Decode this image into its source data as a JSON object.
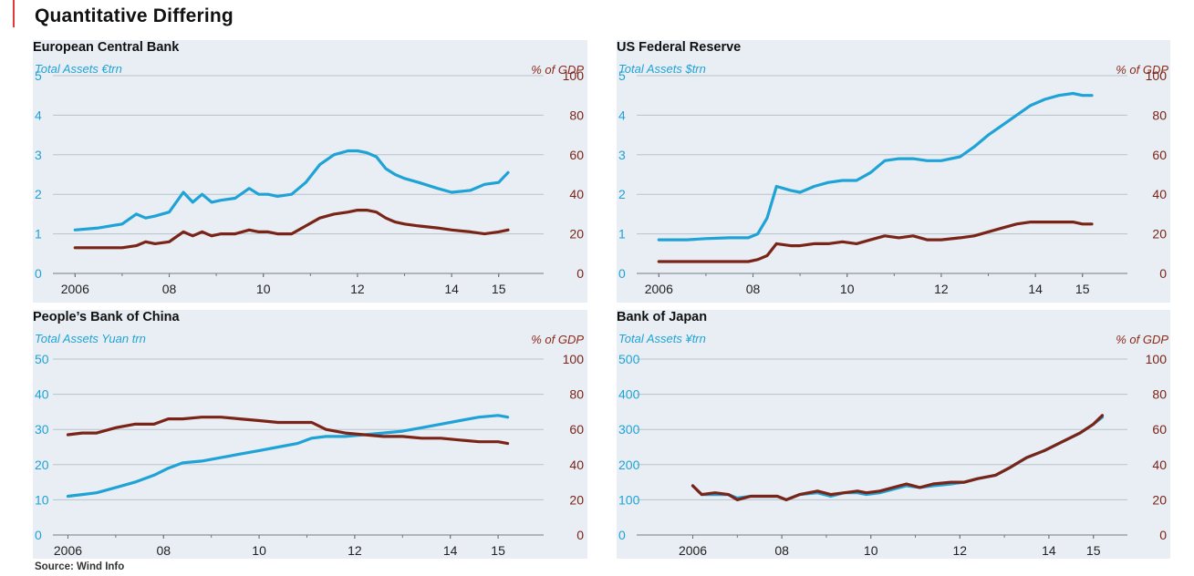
{
  "title": "Quantitative Differing",
  "source": "Source: Wind Info",
  "colors": {
    "assets": "#1fa3d6",
    "gdp": "#7a2418",
    "grid": "#b9c3cc",
    "background": "#e8eef4"
  },
  "chart_data": [
    {
      "type": "line",
      "title": "European Central Bank",
      "ylabel_left": "Total Assets €trn",
      "ylabel_right": "% of GDP",
      "ylim_left": [
        0,
        5
      ],
      "yticks_left": [
        "0",
        "1",
        "2",
        "3",
        "4",
        "5"
      ],
      "ylim_right": [
        0,
        100
      ],
      "yticks_right": [
        "0",
        "20",
        "40",
        "60",
        "80",
        "100"
      ],
      "xlim": [
        2005.8,
        2015.8
      ],
      "xticks": [
        {
          "value": 2006,
          "label": "2006"
        },
        {
          "value": 2008,
          "label": "08"
        },
        {
          "value": 2010,
          "label": "10"
        },
        {
          "value": 2012,
          "label": "12"
        },
        {
          "value": 2014,
          "label": "14"
        },
        {
          "value": 2015,
          "label": "15"
        }
      ],
      "series": [
        {
          "name": "Total Assets €trn",
          "axis": "left",
          "color": "#1fa3d6",
          "x": [
            2006,
            2006.5,
            2007,
            2007.3,
            2007.5,
            2007.7,
            2008,
            2008.3,
            2008.5,
            2008.7,
            2008.9,
            2009.1,
            2009.4,
            2009.7,
            2009.9,
            2010.1,
            2010.3,
            2010.6,
            2010.9,
            2011.2,
            2011.5,
            2011.8,
            2012.0,
            2012.2,
            2012.4,
            2012.6,
            2012.8,
            2013.0,
            2013.3,
            2013.7,
            2014.0,
            2014.4,
            2014.7,
            2015.0,
            2015.2
          ],
          "y": [
            1.1,
            1.15,
            1.25,
            1.5,
            1.4,
            1.45,
            1.55,
            2.05,
            1.8,
            2.0,
            1.8,
            1.85,
            1.9,
            2.15,
            2.0,
            2.0,
            1.95,
            2.0,
            2.3,
            2.75,
            3.0,
            3.1,
            3.1,
            3.05,
            2.95,
            2.65,
            2.5,
            2.4,
            2.3,
            2.15,
            2.05,
            2.1,
            2.25,
            2.3,
            2.55
          ]
        },
        {
          "name": "% of GDP",
          "axis": "right",
          "color": "#7a2418",
          "x": [
            2006,
            2006.5,
            2007,
            2007.3,
            2007.5,
            2007.7,
            2008,
            2008.3,
            2008.5,
            2008.7,
            2008.9,
            2009.1,
            2009.4,
            2009.7,
            2009.9,
            2010.1,
            2010.3,
            2010.6,
            2010.9,
            2011.2,
            2011.5,
            2011.8,
            2012.0,
            2012.2,
            2012.4,
            2012.6,
            2012.8,
            2013.0,
            2013.3,
            2013.7,
            2014.0,
            2014.4,
            2014.7,
            2015.0,
            2015.2
          ],
          "y": [
            13,
            13,
            13,
            14,
            16,
            15,
            16,
            21,
            19,
            21,
            19,
            20,
            20,
            22,
            21,
            21,
            20,
            20,
            24,
            28,
            30,
            31,
            32,
            32,
            31,
            28,
            26,
            25,
            24,
            23,
            22,
            21,
            20,
            21,
            22
          ]
        }
      ]
    },
    {
      "type": "line",
      "title": "US Federal Reserve",
      "ylabel_left": "Total Assets $trn",
      "ylabel_right": "% of GDP",
      "ylim_left": [
        0,
        5
      ],
      "yticks_left": [
        "0",
        "1",
        "2",
        "3",
        "4",
        "5"
      ],
      "ylim_right": [
        0,
        100
      ],
      "yticks_right": [
        "0",
        "20",
        "40",
        "60",
        "80",
        "100"
      ],
      "xlim": [
        2005.8,
        2015.8
      ],
      "xticks": [
        {
          "value": 2006,
          "label": "2006"
        },
        {
          "value": 2008,
          "label": "08"
        },
        {
          "value": 2010,
          "label": "10"
        },
        {
          "value": 2012,
          "label": "12"
        },
        {
          "value": 2014,
          "label": "14"
        },
        {
          "value": 2015,
          "label": "15"
        }
      ],
      "series": [
        {
          "name": "Total Assets $trn",
          "axis": "left",
          "color": "#1fa3d6",
          "x": [
            2006,
            2006.6,
            2007,
            2007.5,
            2007.9,
            2008.1,
            2008.3,
            2008.5,
            2008.8,
            2009,
            2009.3,
            2009.6,
            2009.9,
            2010.2,
            2010.5,
            2010.8,
            2011.1,
            2011.4,
            2011.7,
            2012,
            2012.4,
            2012.7,
            2013,
            2013.3,
            2013.6,
            2013.9,
            2014.2,
            2014.5,
            2014.8,
            2015,
            2015.2
          ],
          "y": [
            0.85,
            0.85,
            0.88,
            0.9,
            0.9,
            1.0,
            1.4,
            2.2,
            2.1,
            2.05,
            2.2,
            2.3,
            2.35,
            2.35,
            2.55,
            2.85,
            2.9,
            2.9,
            2.85,
            2.85,
            2.95,
            3.2,
            3.5,
            3.75,
            4.0,
            4.25,
            4.4,
            4.5,
            4.55,
            4.5,
            4.5
          ]
        },
        {
          "name": "% of GDP",
          "axis": "right",
          "color": "#7a2418",
          "x": [
            2006,
            2006.6,
            2007,
            2007.5,
            2007.9,
            2008.1,
            2008.3,
            2008.5,
            2008.8,
            2009,
            2009.3,
            2009.6,
            2009.9,
            2010.2,
            2010.5,
            2010.8,
            2011.1,
            2011.4,
            2011.7,
            2012,
            2012.4,
            2012.7,
            2013,
            2013.3,
            2013.6,
            2013.9,
            2014.2,
            2014.5,
            2014.8,
            2015,
            2015.2
          ],
          "y": [
            6,
            6,
            6,
            6,
            6,
            7,
            9,
            15,
            14,
            14,
            15,
            15,
            16,
            15,
            17,
            19,
            18,
            19,
            17,
            17,
            18,
            19,
            21,
            23,
            25,
            26,
            26,
            26,
            26,
            25,
            25
          ]
        }
      ]
    },
    {
      "type": "line",
      "title": "People’s Bank of China",
      "ylabel_left": "Total Assets Yuan trn",
      "ylabel_right": "% of GDP",
      "ylim_left": [
        0,
        50
      ],
      "yticks_left": [
        "0",
        "10",
        "20",
        "30",
        "40",
        "50"
      ],
      "ylim_right": [
        0,
        100
      ],
      "yticks_right": [
        "0",
        "20",
        "40",
        "60",
        "80",
        "100"
      ],
      "xlim": [
        2005.8,
        2015.8
      ],
      "xticks": [
        {
          "value": 2006,
          "label": "2006"
        },
        {
          "value": 2008,
          "label": "08"
        },
        {
          "value": 2010,
          "label": "10"
        },
        {
          "value": 2012,
          "label": "12"
        },
        {
          "value": 2014,
          "label": "14"
        },
        {
          "value": 2015,
          "label": "15"
        }
      ],
      "series": [
        {
          "name": "Total Assets Yuan trn",
          "axis": "left",
          "color": "#1fa3d6",
          "x": [
            2006,
            2006.3,
            2006.6,
            2007,
            2007.4,
            2007.8,
            2008.1,
            2008.4,
            2008.8,
            2009.2,
            2009.6,
            2010,
            2010.4,
            2010.8,
            2011.1,
            2011.4,
            2011.8,
            2012.2,
            2012.6,
            2013,
            2013.4,
            2013.8,
            2014.2,
            2014.6,
            2015,
            2015.2
          ],
          "y": [
            11,
            11.5,
            12,
            13.5,
            15,
            17,
            19,
            20.5,
            21,
            22,
            23,
            24,
            25,
            26,
            27.5,
            28,
            28,
            28.5,
            29,
            29.5,
            30.5,
            31.5,
            32.5,
            33.5,
            34,
            33.5
          ]
        },
        {
          "name": "% of GDP",
          "axis": "right",
          "color": "#7a2418",
          "x": [
            2006,
            2006.3,
            2006.6,
            2007,
            2007.4,
            2007.8,
            2008.1,
            2008.4,
            2008.8,
            2009.2,
            2009.6,
            2010,
            2010.4,
            2010.8,
            2011.1,
            2011.4,
            2011.8,
            2012.2,
            2012.6,
            2013,
            2013.4,
            2013.8,
            2014.2,
            2014.6,
            2015,
            2015.2
          ],
          "y": [
            57,
            58,
            58,
            61,
            63,
            63,
            66,
            66,
            67,
            67,
            66,
            65,
            64,
            64,
            64,
            60,
            58,
            57,
            56,
            56,
            55,
            55,
            54,
            53,
            53,
            52
          ]
        }
      ]
    },
    {
      "type": "line",
      "title": "Bank of Japan",
      "ylabel_left": "Total Assets ¥trn",
      "ylabel_right": "% of GDP",
      "ylim_left": [
        0,
        500
      ],
      "yticks_left": [
        "0",
        "100",
        "200",
        "300",
        "400",
        "500"
      ],
      "ylim_right": [
        0,
        100
      ],
      "yticks_right": [
        "0",
        "20",
        "40",
        "60",
        "80",
        "100"
      ],
      "xlim": [
        2005.6,
        2015.6
      ],
      "xticks": [
        {
          "value": 2006,
          "label": "2006"
        },
        {
          "value": 2008,
          "label": "08"
        },
        {
          "value": 2010,
          "label": "10"
        },
        {
          "value": 2012,
          "label": "12"
        },
        {
          "value": 2014,
          "label": "14"
        },
        {
          "value": 2015,
          "label": "15"
        }
      ],
      "series": [
        {
          "name": "Total Assets ¥trn",
          "axis": "left",
          "color": "#1fa3d6",
          "x": [
            2006,
            2006.2,
            2006.5,
            2006.8,
            2007,
            2007.3,
            2007.6,
            2007.9,
            2008.1,
            2008.4,
            2008.8,
            2009.1,
            2009.4,
            2009.7,
            2009.9,
            2010.2,
            2010.5,
            2010.8,
            2011.1,
            2011.4,
            2011.8,
            2012.1,
            2012.4,
            2012.8,
            2013.1,
            2013.5,
            2013.9,
            2014.3,
            2014.7,
            2015,
            2015.2
          ],
          "y": [
            140,
            115,
            115,
            115,
            105,
            110,
            110,
            110,
            100,
            115,
            120,
            110,
            120,
            120,
            115,
            120,
            130,
            140,
            135,
            140,
            145,
            150,
            160,
            170,
            190,
            220,
            240,
            265,
            290,
            315,
            335
          ]
        },
        {
          "name": "% of GDP",
          "axis": "right",
          "color": "#7a2418",
          "x": [
            2006,
            2006.2,
            2006.5,
            2006.8,
            2007,
            2007.3,
            2007.6,
            2007.9,
            2008.1,
            2008.4,
            2008.8,
            2009.1,
            2009.4,
            2009.7,
            2009.9,
            2010.2,
            2010.5,
            2010.8,
            2011.1,
            2011.4,
            2011.8,
            2012.1,
            2012.4,
            2012.8,
            2013.1,
            2013.5,
            2013.9,
            2014.3,
            2014.7,
            2015,
            2015.2
          ],
          "y": [
            28,
            23,
            24,
            23,
            20,
            22,
            22,
            22,
            20,
            23,
            25,
            23,
            24,
            25,
            24,
            25,
            27,
            29,
            27,
            29,
            30,
            30,
            32,
            34,
            38,
            44,
            48,
            53,
            58,
            63,
            68
          ]
        }
      ]
    }
  ]
}
